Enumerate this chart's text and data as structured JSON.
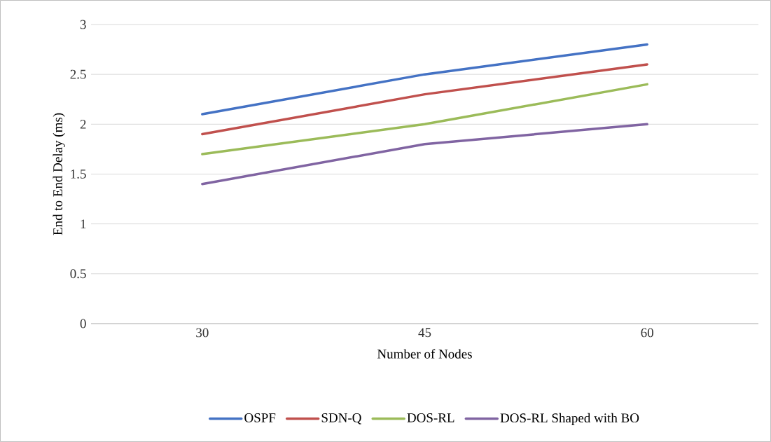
{
  "chart_data": {
    "type": "line",
    "xlabel": "Number of Nodes",
    "ylabel": "End to End Delay (ms)",
    "categories": [
      "30",
      "45",
      "60"
    ],
    "series": [
      {
        "name": "OSPF",
        "color": "#4472c4",
        "values": [
          2.1,
          2.5,
          2.8
        ]
      },
      {
        "name": "SDN-Q",
        "color": "#c0504d",
        "values": [
          1.9,
          2.3,
          2.6
        ]
      },
      {
        "name": "DOS-RL",
        "color": "#9bbb59",
        "values": [
          1.7,
          2.0,
          2.4
        ]
      },
      {
        "name": "DOS-RL Shaped with BO",
        "color": "#8064a2",
        "values": [
          1.4,
          1.8,
          2.0
        ]
      }
    ],
    "ylim": [
      0,
      3
    ],
    "yticks": [
      0,
      0.5,
      1,
      1.5,
      2,
      2.5,
      3
    ],
    "grid": "y",
    "legend": "bottom"
  }
}
